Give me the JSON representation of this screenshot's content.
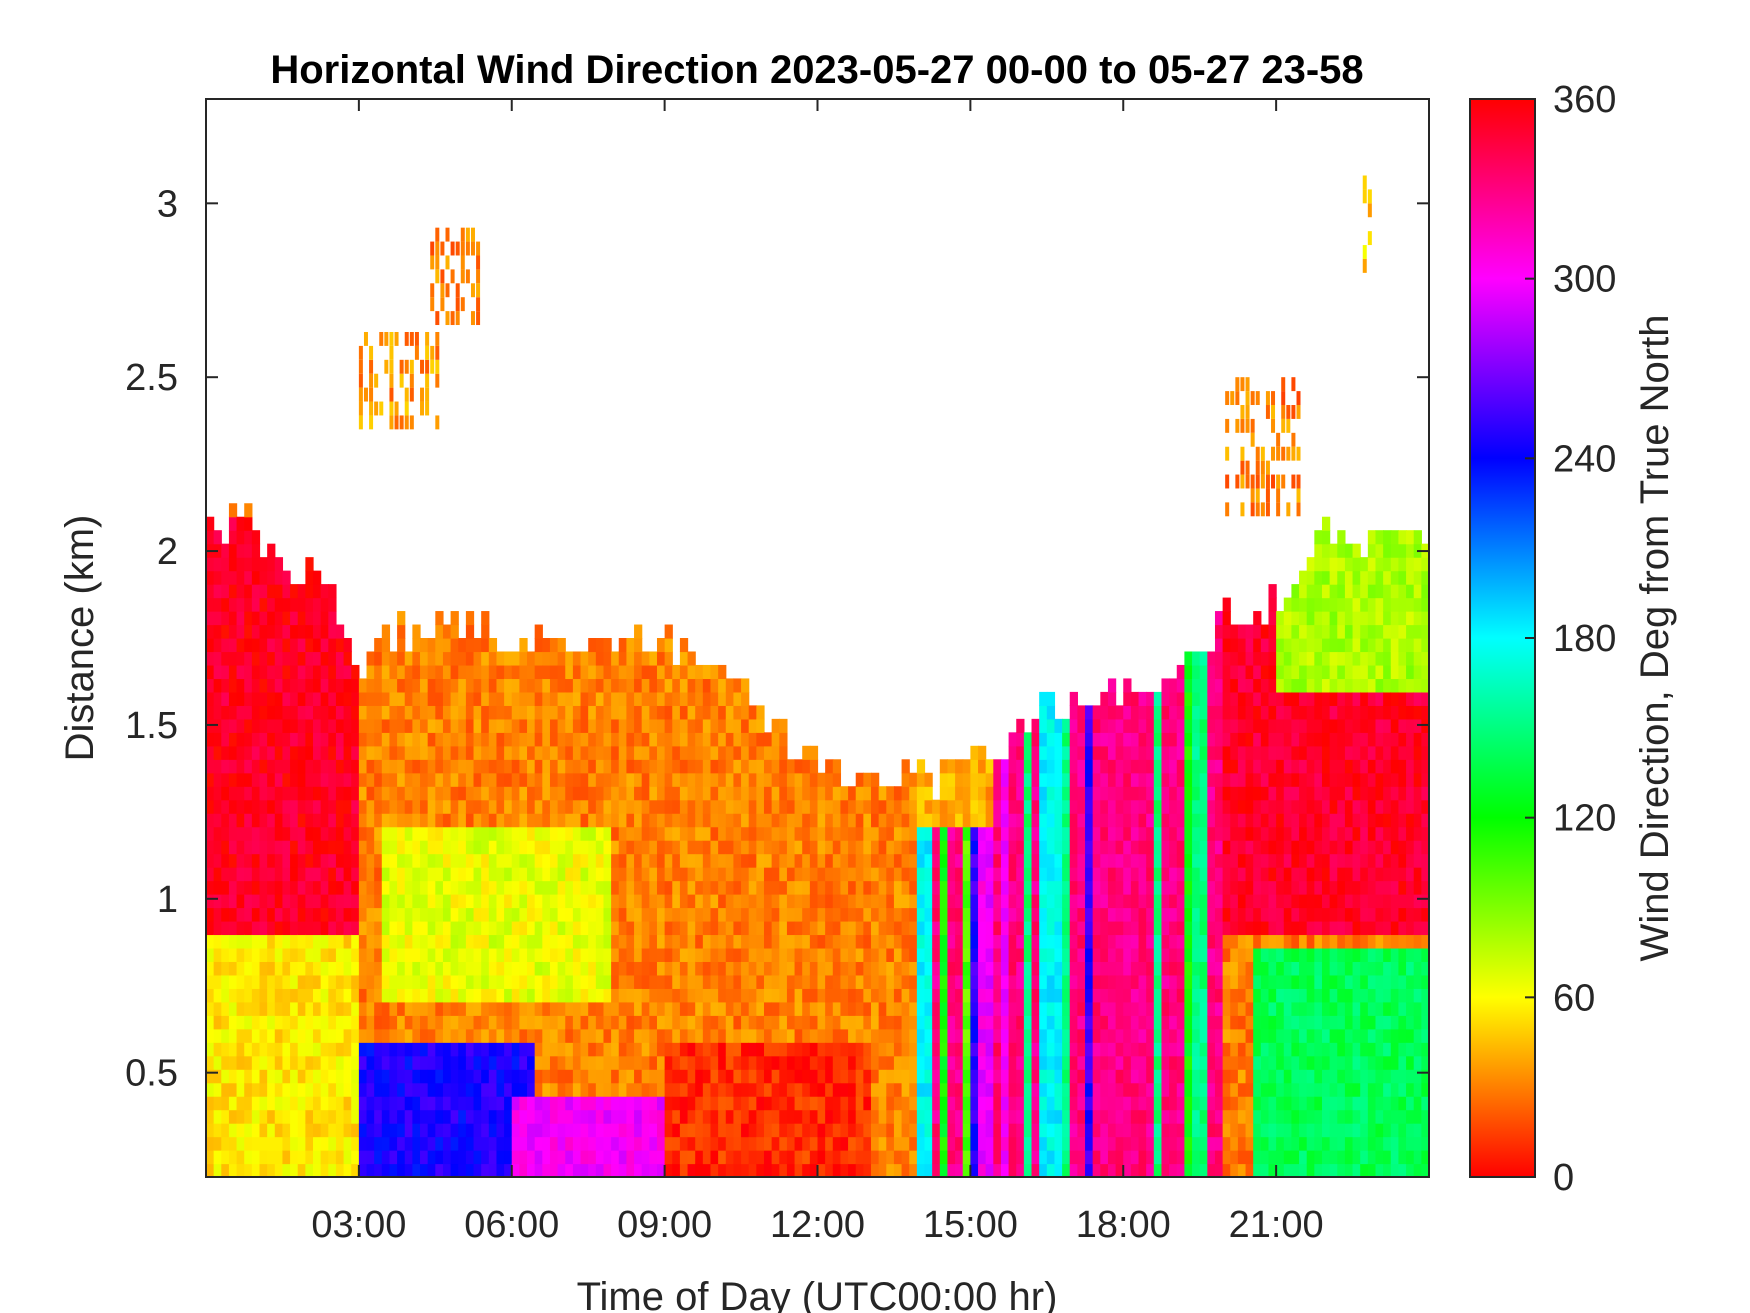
{
  "chart_data": {
    "type": "heatmap",
    "title": "Horizontal Wind Direction 2023-05-27 00-00 to 05-27 23-58",
    "xlabel": "Time of Day (UTC00:00 hr)",
    "ylabel": "Distance (km)",
    "xlim_hours": [
      0,
      24
    ],
    "ylim": [
      0.2,
      3.3
    ],
    "x_ticks": [
      {
        "hour": 3,
        "label": "03:00"
      },
      {
        "hour": 6,
        "label": "06:00"
      },
      {
        "hour": 9,
        "label": "09:00"
      },
      {
        "hour": 12,
        "label": "12:00"
      },
      {
        "hour": 15,
        "label": "15:00"
      },
      {
        "hour": 18,
        "label": "18:00"
      },
      {
        "hour": 21,
        "label": "21:00"
      }
    ],
    "y_ticks": [
      {
        "value": 0.5,
        "label": "0.5"
      },
      {
        "value": 1,
        "label": "1"
      },
      {
        "value": 1.5,
        "label": "1.5"
      },
      {
        "value": 2,
        "label": "2"
      },
      {
        "value": 2.5,
        "label": "2.5"
      },
      {
        "value": 3,
        "label": "3"
      }
    ],
    "colorbar": {
      "label": "Wind Direction, Deg from True North",
      "range": [
        0,
        360
      ],
      "ticks": [
        {
          "value": 0,
          "label": "0"
        },
        {
          "value": 60,
          "label": "60"
        },
        {
          "value": 120,
          "label": "120"
        },
        {
          "value": 180,
          "label": "180"
        },
        {
          "value": 240,
          "label": "240"
        },
        {
          "value": 300,
          "label": "300"
        },
        {
          "value": 360,
          "label": "360"
        }
      ],
      "colormap": "hsv-like: 0 red, 60 yellow, 120 green, 180 cyan, 240 blue, 300 magenta, 360 red"
    },
    "data_top_km": [
      {
        "hour": 0.0,
        "top": 2.05
      },
      {
        "hour": 0.5,
        "top": 2.1
      },
      {
        "hour": 1.0,
        "top": 2.05
      },
      {
        "hour": 1.5,
        "top": 1.95
      },
      {
        "hour": 2.0,
        "top": 1.95
      },
      {
        "hour": 2.6,
        "top": 1.85
      },
      {
        "hour": 3.0,
        "top": 1.65
      },
      {
        "hour": 3.5,
        "top": 1.75
      },
      {
        "hour": 4.5,
        "top": 1.8
      },
      {
        "hour": 6.0,
        "top": 1.75
      },
      {
        "hour": 9.0,
        "top": 1.75
      },
      {
        "hour": 10.5,
        "top": 1.6
      },
      {
        "hour": 11.5,
        "top": 1.45
      },
      {
        "hour": 13.0,
        "top": 1.35
      },
      {
        "hour": 14.5,
        "top": 1.35
      },
      {
        "hour": 15.5,
        "top": 1.45
      },
      {
        "hour": 16.5,
        "top": 1.55
      },
      {
        "hour": 18.0,
        "top": 1.6
      },
      {
        "hour": 19.0,
        "top": 1.6
      },
      {
        "hour": 20.0,
        "top": 1.8
      },
      {
        "hour": 21.0,
        "top": 1.85
      },
      {
        "hour": 22.0,
        "top": 2.05
      },
      {
        "hour": 23.0,
        "top": 2.05
      },
      {
        "hour": 24.0,
        "top": 2.05
      }
    ],
    "regions": [
      {
        "name": "early-morning-high",
        "hours": [
          0,
          3
        ],
        "heights_km": [
          0.9,
          2.1
        ],
        "direction_deg": 352
      },
      {
        "name": "early-morning-low",
        "hours": [
          0,
          3
        ],
        "heights_km": [
          0.2,
          0.9
        ],
        "direction_deg": 55
      },
      {
        "name": "morning-core",
        "hours": [
          3.5,
          8
        ],
        "heights_km": [
          0.7,
          1.4
        ],
        "direction_deg": 65
      },
      {
        "name": "day-upper",
        "hours": [
          3,
          13
        ],
        "heights_km": [
          1.2,
          1.8
        ],
        "direction_deg": 30
      },
      {
        "name": "low-level-blue",
        "hours": [
          3,
          6.5
        ],
        "heights_km": [
          0.2,
          0.6
        ],
        "direction_deg": 245
      },
      {
        "name": "low-level-magenta",
        "hours": [
          6,
          9
        ],
        "heights_km": [
          0.2,
          0.45
        ],
        "direction_deg": 300
      },
      {
        "name": "mid-day-low",
        "hours": [
          9,
          13
        ],
        "heights_km": [
          0.2,
          0.6
        ],
        "direction_deg": 10
      },
      {
        "name": "afternoon-variable",
        "hours": [
          14,
          20
        ],
        "heights_km": [
          0.2,
          1.6
        ],
        "direction_deg": 150
      },
      {
        "name": "evening-upper",
        "hours": [
          20,
          24
        ],
        "heights_km": [
          0.9,
          2.0
        ],
        "direction_deg": 350
      },
      {
        "name": "evening-lower",
        "hours": [
          20.5,
          24
        ],
        "heights_km": [
          0.2,
          0.85
        ],
        "direction_deg": 140
      },
      {
        "name": "evening-gradient",
        "hours": [
          21,
          24
        ],
        "heights_km": [
          1.6,
          2.1
        ],
        "direction_deg": 80
      }
    ],
    "isolated_patches": [
      {
        "hours": [
          4.4,
          5.3
        ],
        "heights_km": [
          2.65,
          2.9
        ],
        "direction_deg": 30
      },
      {
        "hours": [
          3.0,
          4.5
        ],
        "heights_km": [
          2.35,
          2.6
        ],
        "direction_deg": 35
      },
      {
        "hours": [
          20.0,
          21.5
        ],
        "heights_km": [
          2.1,
          2.5
        ],
        "direction_deg": 30
      },
      {
        "hours": [
          22.7,
          22.9
        ],
        "heights_km": [
          2.8,
          3.05
        ],
        "direction_deg": 50
      }
    ]
  }
}
